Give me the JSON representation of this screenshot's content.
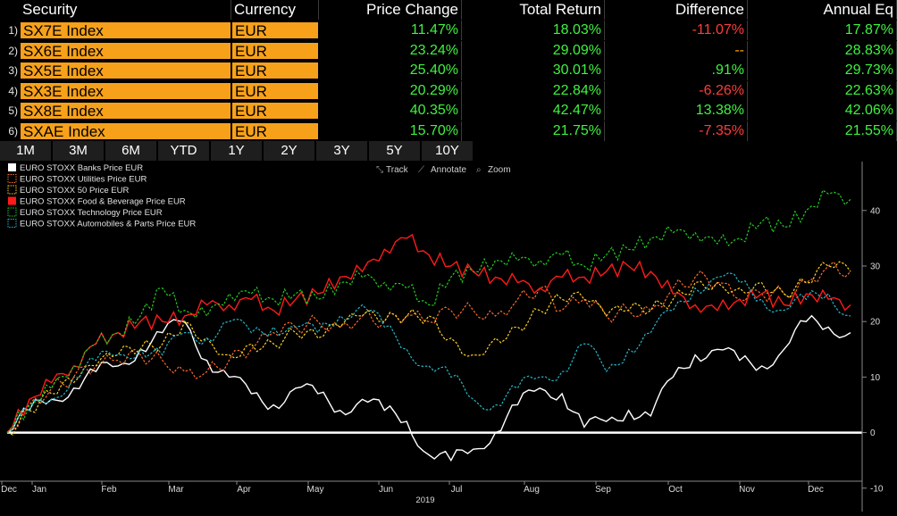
{
  "table": {
    "headers": [
      "Security",
      "Currency",
      "Price Change",
      "Total Return",
      "Difference",
      "Annual Eq"
    ],
    "rows": [
      {
        "num": "1)",
        "security": "SX7E Index",
        "currency": "EUR",
        "price_change": "11.47%",
        "total_return": "18.03%",
        "difference": "-11.07%",
        "diff_color": "red",
        "annual_eq": "17.87%"
      },
      {
        "num": "2)",
        "security": "SX6E Index",
        "currency": "EUR",
        "price_change": "23.24%",
        "total_return": "29.09%",
        "difference": "--",
        "diff_color": "amber",
        "annual_eq": "28.83%"
      },
      {
        "num": "3)",
        "security": "SX5E Index",
        "currency": "EUR",
        "price_change": "25.40%",
        "total_return": "30.01%",
        "difference": ".91%",
        "diff_color": "green",
        "annual_eq": "29.73%"
      },
      {
        "num": "4)",
        "security": "SX3E Index",
        "currency": "EUR",
        "price_change": "20.29%",
        "total_return": "22.84%",
        "difference": "-6.26%",
        "diff_color": "red",
        "annual_eq": "22.63%"
      },
      {
        "num": "5)",
        "security": "SX8E Index",
        "currency": "EUR",
        "price_change": "40.35%",
        "total_return": "42.47%",
        "difference": "13.38%",
        "diff_color": "green",
        "annual_eq": "42.06%"
      },
      {
        "num": "6)",
        "security": "SXAE Index",
        "currency": "EUR",
        "price_change": "15.70%",
        "total_return": "21.75%",
        "difference": "-7.35%",
        "diff_color": "red",
        "annual_eq": "21.55%"
      }
    ]
  },
  "periods": [
    "1M",
    "3M",
    "6M",
    "YTD",
    "1Y",
    "2Y",
    "3Y",
    "5Y",
    "10Y"
  ],
  "toolbar": {
    "track": "Track",
    "annotate": "Annotate",
    "zoom": "Zoom"
  },
  "colors": {
    "banks": "#ffffff",
    "utilities": "#ff6a2a",
    "stoxx50": "#ffd21f",
    "food": "#ff1a1a",
    "tech": "#22cc22",
    "autos": "#26b8c8",
    "header_orange": "#f7a11a",
    "positive": "#3ff23f",
    "negative": "#ff3b3b"
  },
  "chart_data": {
    "type": "line",
    "x_tick_labels": [
      "Dec",
      "Jan",
      "Feb",
      "Mar",
      "Apr",
      "May",
      "Jun",
      "Jul",
      "Aug",
      "Sep",
      "Oct",
      "Nov",
      "Dec"
    ],
    "x_year_label": "2019",
    "ylim": [
      -11,
      48
    ],
    "y_ticks": [
      -10,
      0,
      10,
      20,
      30,
      40
    ],
    "grid": false,
    "legend_position": "top-left",
    "series": [
      {
        "name": "EURO STOXX Banks Price EUR",
        "key": "banks",
        "style": "solid",
        "values": [
          0,
          4,
          6,
          8,
          11,
          12,
          15,
          18,
          20,
          13,
          10,
          7,
          5,
          8,
          7,
          4,
          6,
          4,
          2,
          -4,
          -5,
          -3,
          0,
          5,
          8,
          7,
          1,
          2,
          4,
          3,
          10,
          14,
          15,
          13,
          12,
          15,
          20,
          19,
          18
        ]
      },
      {
        "name": "EURO STOXX Utilities Price EUR",
        "key": "utilities",
        "style": "dotted",
        "values": [
          0,
          5,
          8,
          10,
          12,
          13,
          14,
          13,
          11,
          11,
          13,
          15,
          18,
          19,
          20,
          19,
          21,
          20,
          21,
          20,
          22,
          22,
          21,
          24,
          26,
          22,
          24,
          21,
          22,
          22,
          26,
          28,
          27,
          24,
          25,
          25,
          27,
          30,
          29
        ]
      },
      {
        "name": "EURO STOXX 50 Price EUR",
        "key": "stoxx50",
        "style": "dotted",
        "values": [
          0,
          4,
          7,
          9,
          12,
          14,
          15,
          16,
          20,
          17,
          14,
          16,
          16,
          18,
          17,
          19,
          21,
          20,
          21,
          21,
          17,
          14,
          17,
          19,
          22,
          24,
          24,
          21,
          22,
          22,
          24,
          27,
          27,
          26,
          27,
          25,
          27,
          30,
          29
        ]
      },
      {
        "name": "EURO STOXX Food & Beverage Price EUR",
        "key": "food",
        "style": "solid",
        "values": [
          0,
          6,
          9,
          12,
          16,
          18,
          20,
          20,
          21,
          23,
          23,
          24,
          22,
          24,
          25,
          28,
          29,
          33,
          35,
          32,
          30,
          29,
          28,
          27,
          26,
          28,
          28,
          29,
          30,
          29,
          25,
          23,
          22,
          24,
          25,
          23,
          25,
          24,
          23
        ]
      },
      {
        "name": "EURO STOXX Technology Price EUR",
        "key": "tech",
        "style": "dotted",
        "values": [
          0,
          5,
          8,
          12,
          16,
          18,
          21,
          26,
          22,
          21,
          25,
          25,
          24,
          25,
          24,
          27,
          28,
          27,
          26,
          23,
          28,
          29,
          31,
          31,
          31,
          32,
          30,
          32,
          33,
          35,
          36,
          36,
          34,
          35,
          38,
          37,
          40,
          43,
          42
        ]
      },
      {
        "name": "EURO STOXX Automobiles & Parts Price EUR",
        "key": "autos",
        "style": "dotted",
        "values": [
          0,
          4,
          6,
          10,
          13,
          14,
          15,
          14,
          18,
          17,
          20,
          18,
          19,
          19,
          18,
          21,
          23,
          19,
          15,
          12,
          10,
          6,
          5,
          8,
          10,
          11,
          16,
          11,
          15,
          18,
          22,
          26,
          28,
          27,
          24,
          22,
          24,
          25,
          21
        ]
      }
    ]
  }
}
